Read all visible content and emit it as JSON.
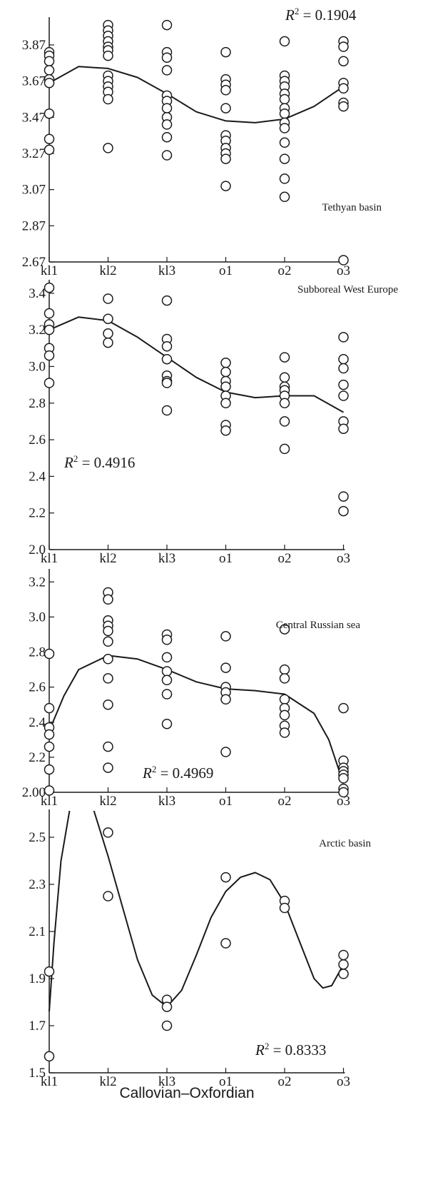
{
  "chart_data": [
    {
      "type": "scatter",
      "categories": [
        "kl1",
        "kl2",
        "kl3",
        "o1",
        "o2",
        "o3"
      ],
      "annotation": "Tethyan basin",
      "r2_prefix": "R",
      "r2_sup": "2",
      "r2_value": " = 0.1904",
      "ylim": [
        2.67,
        4.0
      ],
      "yticks": [
        2.67,
        2.87,
        3.07,
        3.27,
        3.47,
        3.67,
        3.87
      ],
      "ytick_labels": [
        "2.67",
        "2.87",
        "3.07",
        "3.27",
        "3.47",
        "3.67",
        "3.87"
      ],
      "points": [
        {
          "x": 1,
          "y": 3.83
        },
        {
          "x": 1,
          "y": 3.81
        },
        {
          "x": 1,
          "y": 3.78
        },
        {
          "x": 1,
          "y": 3.73
        },
        {
          "x": 1,
          "y": 3.68
        },
        {
          "x": 1,
          "y": 3.66
        },
        {
          "x": 1,
          "y": 3.49
        },
        {
          "x": 1,
          "y": 3.35
        },
        {
          "x": 1,
          "y": 3.29
        },
        {
          "x": 2,
          "y": 3.98
        },
        {
          "x": 2,
          "y": 3.95
        },
        {
          "x": 2,
          "y": 3.92
        },
        {
          "x": 2,
          "y": 3.89
        },
        {
          "x": 2,
          "y": 3.86
        },
        {
          "x": 2,
          "y": 3.84
        },
        {
          "x": 2,
          "y": 3.81
        },
        {
          "x": 2,
          "y": 3.7
        },
        {
          "x": 2,
          "y": 3.67
        },
        {
          "x": 2,
          "y": 3.64
        },
        {
          "x": 2,
          "y": 3.61
        },
        {
          "x": 2,
          "y": 3.57
        },
        {
          "x": 2,
          "y": 3.3
        },
        {
          "x": 3,
          "y": 3.98
        },
        {
          "x": 3,
          "y": 3.83
        },
        {
          "x": 3,
          "y": 3.8
        },
        {
          "x": 3,
          "y": 3.73
        },
        {
          "x": 3,
          "y": 3.59
        },
        {
          "x": 3,
          "y": 3.56
        },
        {
          "x": 3,
          "y": 3.52
        },
        {
          "x": 3,
          "y": 3.47
        },
        {
          "x": 3,
          "y": 3.43
        },
        {
          "x": 3,
          "y": 3.36
        },
        {
          "x": 3,
          "y": 3.26
        },
        {
          "x": 4,
          "y": 3.83
        },
        {
          "x": 4,
          "y": 3.68
        },
        {
          "x": 4,
          "y": 3.65
        },
        {
          "x": 4,
          "y": 3.62
        },
        {
          "x": 4,
          "y": 3.52
        },
        {
          "x": 4,
          "y": 3.37
        },
        {
          "x": 4,
          "y": 3.34
        },
        {
          "x": 4,
          "y": 3.3
        },
        {
          "x": 4,
          "y": 3.27
        },
        {
          "x": 4,
          "y": 3.24
        },
        {
          "x": 4,
          "y": 3.09
        },
        {
          "x": 5,
          "y": 3.89
        },
        {
          "x": 5,
          "y": 3.7
        },
        {
          "x": 5,
          "y": 3.67
        },
        {
          "x": 5,
          "y": 3.64
        },
        {
          "x": 5,
          "y": 3.6
        },
        {
          "x": 5,
          "y": 3.57
        },
        {
          "x": 5,
          "y": 3.52
        },
        {
          "x": 5,
          "y": 3.49
        },
        {
          "x": 5,
          "y": 3.44
        },
        {
          "x": 5,
          "y": 3.41
        },
        {
          "x": 5,
          "y": 3.33
        },
        {
          "x": 5,
          "y": 3.24
        },
        {
          "x": 5,
          "y": 3.13
        },
        {
          "x": 5,
          "y": 3.03
        },
        {
          "x": 6,
          "y": 3.89
        },
        {
          "x": 6,
          "y": 3.86
        },
        {
          "x": 6,
          "y": 3.78
        },
        {
          "x": 6,
          "y": 3.66
        },
        {
          "x": 6,
          "y": 3.63
        },
        {
          "x": 6,
          "y": 3.55
        },
        {
          "x": 6,
          "y": 3.53
        },
        {
          "x": 6,
          "y": 2.68
        }
      ],
      "trend": [
        {
          "x": 1,
          "y": 3.66
        },
        {
          "x": 1.5,
          "y": 3.75
        },
        {
          "x": 2,
          "y": 3.74
        },
        {
          "x": 2.5,
          "y": 3.69
        },
        {
          "x": 3,
          "y": 3.6
        },
        {
          "x": 3.5,
          "y": 3.5
        },
        {
          "x": 4,
          "y": 3.45
        },
        {
          "x": 4.5,
          "y": 3.44
        },
        {
          "x": 5,
          "y": 3.46
        },
        {
          "x": 5.5,
          "y": 3.53
        },
        {
          "x": 6,
          "y": 3.64
        }
      ]
    },
    {
      "type": "scatter",
      "categories": [
        "kl1",
        "kl2",
        "kl3",
        "o1",
        "o2",
        "o3"
      ],
      "annotation": "Subboreal West Europe",
      "r2_prefix": "R",
      "r2_sup": "2",
      "r2_value": " = 0.4916",
      "ylim": [
        2.0,
        3.45
      ],
      "yticks": [
        2.0,
        2.2,
        2.4,
        2.6,
        2.8,
        3.0,
        3.2,
        3.4
      ],
      "ytick_labels": [
        "2.0",
        "2.2",
        "2.4",
        "2.6",
        "2.8",
        "3.0",
        "3.2",
        "3.4"
      ],
      "points": [
        {
          "x": 1,
          "y": 3.43
        },
        {
          "x": 1,
          "y": 3.29
        },
        {
          "x": 1,
          "y": 3.23
        },
        {
          "x": 1,
          "y": 3.2
        },
        {
          "x": 1,
          "y": 3.1
        },
        {
          "x": 1,
          "y": 3.06
        },
        {
          "x": 1,
          "y": 2.91
        },
        {
          "x": 2,
          "y": 3.37
        },
        {
          "x": 2,
          "y": 3.26
        },
        {
          "x": 2,
          "y": 3.18
        },
        {
          "x": 2,
          "y": 3.13
        },
        {
          "x": 3,
          "y": 3.36
        },
        {
          "x": 3,
          "y": 3.15
        },
        {
          "x": 3,
          "y": 3.11
        },
        {
          "x": 3,
          "y": 3.04
        },
        {
          "x": 3,
          "y": 2.95
        },
        {
          "x": 3,
          "y": 2.92
        },
        {
          "x": 3,
          "y": 2.91
        },
        {
          "x": 3,
          "y": 2.76
        },
        {
          "x": 4,
          "y": 3.02
        },
        {
          "x": 4,
          "y": 2.97
        },
        {
          "x": 4,
          "y": 2.92
        },
        {
          "x": 4,
          "y": 2.89
        },
        {
          "x": 4,
          "y": 2.84
        },
        {
          "x": 4,
          "y": 2.8
        },
        {
          "x": 4,
          "y": 2.68
        },
        {
          "x": 4,
          "y": 2.65
        },
        {
          "x": 5,
          "y": 3.05
        },
        {
          "x": 5,
          "y": 2.94
        },
        {
          "x": 5,
          "y": 2.89
        },
        {
          "x": 5,
          "y": 2.87
        },
        {
          "x": 5,
          "y": 2.84
        },
        {
          "x": 5,
          "y": 2.8
        },
        {
          "x": 5,
          "y": 2.7
        },
        {
          "x": 5,
          "y": 2.55
        },
        {
          "x": 6,
          "y": 3.16
        },
        {
          "x": 6,
          "y": 3.04
        },
        {
          "x": 6,
          "y": 2.99
        },
        {
          "x": 6,
          "y": 2.9
        },
        {
          "x": 6,
          "y": 2.84
        },
        {
          "x": 6,
          "y": 2.7
        },
        {
          "x": 6,
          "y": 2.66
        },
        {
          "x": 6,
          "y": 2.29
        },
        {
          "x": 6,
          "y": 2.21
        }
      ],
      "trend": [
        {
          "x": 1,
          "y": 3.2
        },
        {
          "x": 1.5,
          "y": 3.27
        },
        {
          "x": 2,
          "y": 3.25
        },
        {
          "x": 2.5,
          "y": 3.16
        },
        {
          "x": 3,
          "y": 3.05
        },
        {
          "x": 3.5,
          "y": 2.94
        },
        {
          "x": 4,
          "y": 2.86
        },
        {
          "x": 4.5,
          "y": 2.83
        },
        {
          "x": 5,
          "y": 2.84
        },
        {
          "x": 5.5,
          "y": 2.84
        },
        {
          "x": 6,
          "y": 2.75
        }
      ]
    },
    {
      "type": "scatter",
      "categories": [
        "kl1",
        "kl2",
        "kl3",
        "o1",
        "o2",
        "o3"
      ],
      "annotation": "Central Russian sea",
      "r2_prefix": "R",
      "r2_sup": "2",
      "r2_value": " = 0.4969",
      "ylim": [
        2.0,
        3.25
      ],
      "yticks": [
        2.0,
        2.2,
        2.4,
        2.6,
        2.8,
        3.0,
        3.2
      ],
      "ytick_labels": [
        "2.00",
        "2.2",
        "2.4",
        "2.6",
        "2.8",
        "3.0",
        "3.2"
      ],
      "points": [
        {
          "x": 1,
          "y": 2.79
        },
        {
          "x": 1,
          "y": 2.48
        },
        {
          "x": 1,
          "y": 2.37
        },
        {
          "x": 1,
          "y": 2.33
        },
        {
          "x": 1,
          "y": 2.26
        },
        {
          "x": 1,
          "y": 2.13
        },
        {
          "x": 1,
          "y": 2.01
        },
        {
          "x": 2,
          "y": 3.14
        },
        {
          "x": 2,
          "y": 3.1
        },
        {
          "x": 2,
          "y": 2.98
        },
        {
          "x": 2,
          "y": 2.95
        },
        {
          "x": 2,
          "y": 2.92
        },
        {
          "x": 2,
          "y": 2.86
        },
        {
          "x": 2,
          "y": 2.76
        },
        {
          "x": 2,
          "y": 2.65
        },
        {
          "x": 2,
          "y": 2.5
        },
        {
          "x": 2,
          "y": 2.26
        },
        {
          "x": 2,
          "y": 2.14
        },
        {
          "x": 3,
          "y": 2.9
        },
        {
          "x": 3,
          "y": 2.87
        },
        {
          "x": 3,
          "y": 2.77
        },
        {
          "x": 3,
          "y": 2.69
        },
        {
          "x": 3,
          "y": 2.64
        },
        {
          "x": 3,
          "y": 2.56
        },
        {
          "x": 3,
          "y": 2.39
        },
        {
          "x": 4,
          "y": 2.89
        },
        {
          "x": 4,
          "y": 2.71
        },
        {
          "x": 4,
          "y": 2.6
        },
        {
          "x": 4,
          "y": 2.57
        },
        {
          "x": 4,
          "y": 2.53
        },
        {
          "x": 4,
          "y": 2.23
        },
        {
          "x": 5,
          "y": 2.93
        },
        {
          "x": 5,
          "y": 2.7
        },
        {
          "x": 5,
          "y": 2.65
        },
        {
          "x": 5,
          "y": 2.53
        },
        {
          "x": 5,
          "y": 2.48
        },
        {
          "x": 5,
          "y": 2.44
        },
        {
          "x": 5,
          "y": 2.38
        },
        {
          "x": 5,
          "y": 2.34
        },
        {
          "x": 6,
          "y": 2.48
        },
        {
          "x": 6,
          "y": 2.18
        },
        {
          "x": 6,
          "y": 2.14
        },
        {
          "x": 6,
          "y": 2.12
        },
        {
          "x": 6,
          "y": 2.1
        },
        {
          "x": 6,
          "y": 2.08
        },
        {
          "x": 6,
          "y": 2.02
        },
        {
          "x": 6,
          "y": 2.0
        }
      ],
      "trend": [
        {
          "x": 1,
          "y": 2.35
        },
        {
          "x": 1.25,
          "y": 2.55
        },
        {
          "x": 1.5,
          "y": 2.7
        },
        {
          "x": 2,
          "y": 2.78
        },
        {
          "x": 2.5,
          "y": 2.76
        },
        {
          "x": 3,
          "y": 2.7
        },
        {
          "x": 3.5,
          "y": 2.63
        },
        {
          "x": 4,
          "y": 2.59
        },
        {
          "x": 4.5,
          "y": 2.58
        },
        {
          "x": 5,
          "y": 2.56
        },
        {
          "x": 5.5,
          "y": 2.45
        },
        {
          "x": 5.75,
          "y": 2.3
        },
        {
          "x": 6,
          "y": 2.05
        }
      ]
    },
    {
      "type": "scatter",
      "categories": [
        "kl1",
        "kl2",
        "kl3",
        "o1",
        "o2",
        "o3"
      ],
      "annotation": "Arctic basin",
      "r2_prefix": "R",
      "r2_sup": "2",
      "r2_value": " = 0.8333",
      "xlabel": "Callovian–Oxfordian",
      "ylim": [
        1.5,
        2.6
      ],
      "yticks": [
        1.5,
        1.7,
        1.9,
        2.1,
        2.3,
        2.5
      ],
      "ytick_labels": [
        "1.5",
        "1.7",
        "1.9",
        "2.1",
        "2.3",
        "2.5"
      ],
      "points": [
        {
          "x": 1,
          "y": 1.93
        },
        {
          "x": 1,
          "y": 1.57
        },
        {
          "x": 2,
          "y": 2.52
        },
        {
          "x": 2,
          "y": 2.25
        },
        {
          "x": 3,
          "y": 1.81
        },
        {
          "x": 3,
          "y": 1.78
        },
        {
          "x": 3,
          "y": 1.7
        },
        {
          "x": 4,
          "y": 2.33
        },
        {
          "x": 4,
          "y": 2.05
        },
        {
          "x": 5,
          "y": 2.23
        },
        {
          "x": 5,
          "y": 2.2
        },
        {
          "x": 6,
          "y": 2.0
        },
        {
          "x": 6,
          "y": 1.96
        },
        {
          "x": 6,
          "y": 1.92
        }
      ],
      "trend": [
        {
          "x": 1,
          "y": 1.76
        },
        {
          "x": 1.08,
          "y": 2.05
        },
        {
          "x": 1.2,
          "y": 2.4
        },
        {
          "x": 1.35,
          "y": 2.62
        },
        {
          "x": 1.75,
          "y": 2.62
        },
        {
          "x": 2,
          "y": 2.42
        },
        {
          "x": 2.25,
          "y": 2.2
        },
        {
          "x": 2.5,
          "y": 1.98
        },
        {
          "x": 2.75,
          "y": 1.83
        },
        {
          "x": 3,
          "y": 1.78
        },
        {
          "x": 3.25,
          "y": 1.85
        },
        {
          "x": 3.5,
          "y": 2.0
        },
        {
          "x": 3.75,
          "y": 2.16
        },
        {
          "x": 4,
          "y": 2.27
        },
        {
          "x": 4.25,
          "y": 2.33
        },
        {
          "x": 4.5,
          "y": 2.35
        },
        {
          "x": 4.75,
          "y": 2.32
        },
        {
          "x": 5,
          "y": 2.22
        },
        {
          "x": 5.25,
          "y": 2.06
        },
        {
          "x": 5.5,
          "y": 1.9
        },
        {
          "x": 5.65,
          "y": 1.86
        },
        {
          "x": 5.8,
          "y": 1.87
        },
        {
          "x": 6,
          "y": 1.96
        }
      ]
    }
  ]
}
